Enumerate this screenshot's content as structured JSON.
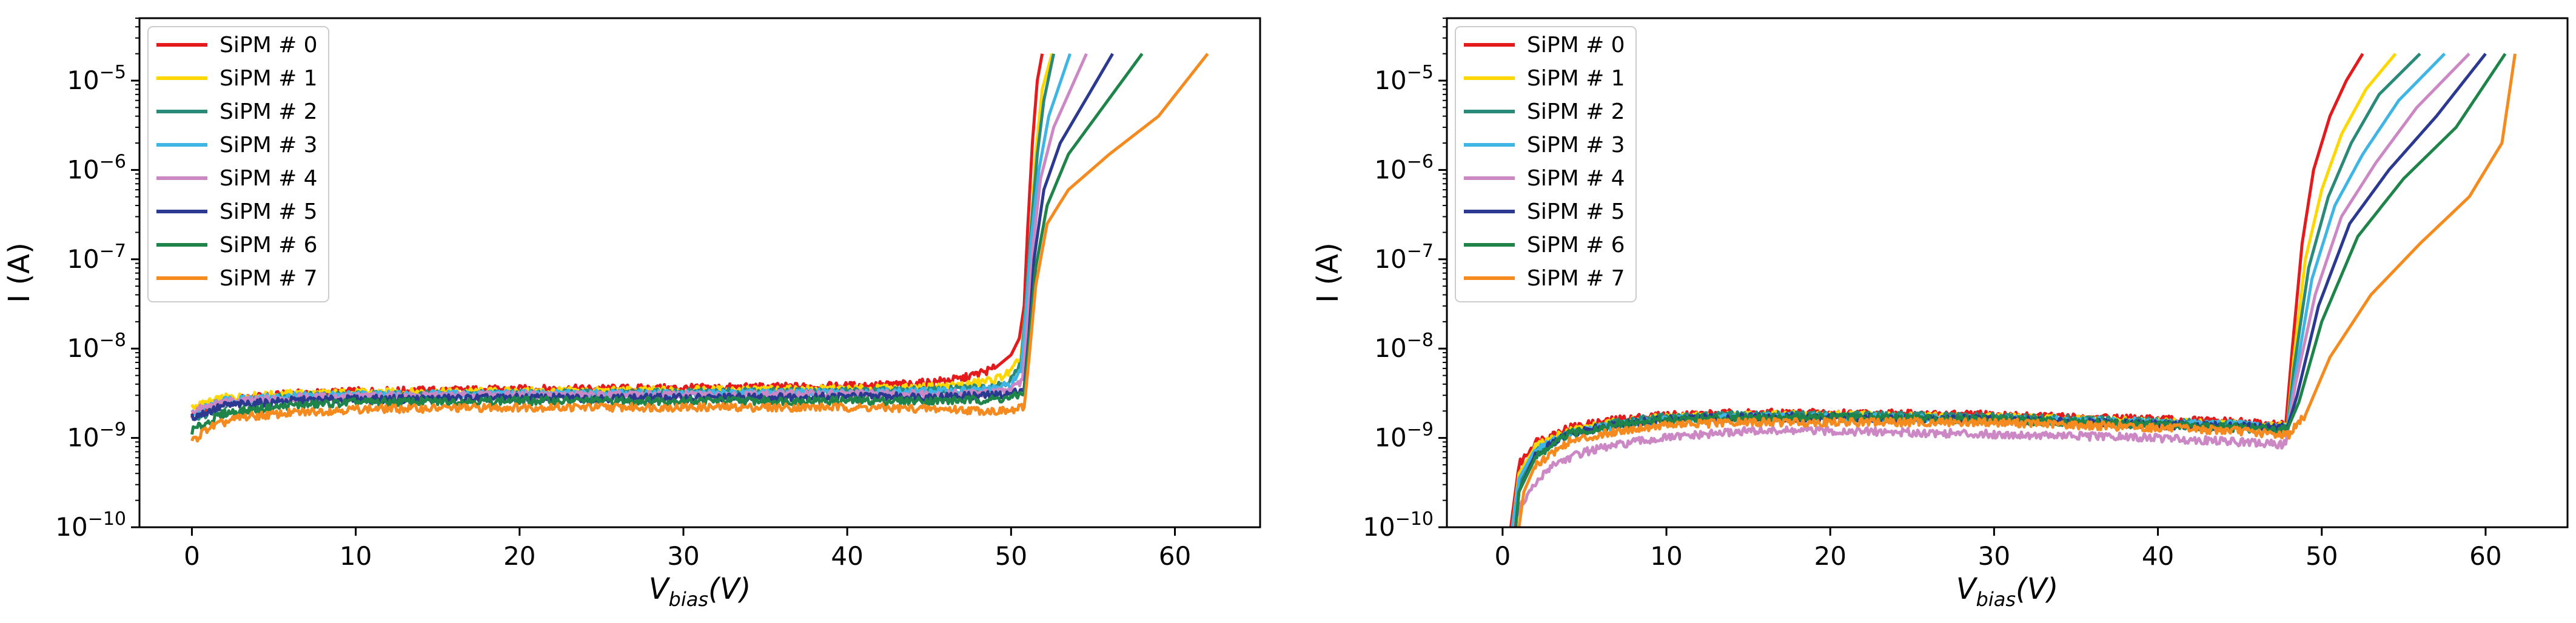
{
  "chart_data": [
    {
      "type": "line",
      "title": "",
      "xlabel": "V_bias(V)",
      "xlabel_main": "V",
      "xlabel_sub": "bias",
      "xlabel_suffix": "(V)",
      "ylabel": "I (A)",
      "yscale": "log",
      "xlim": [
        -3.2,
        65.2
      ],
      "ylim": [
        1e-10,
        5e-05
      ],
      "xticks": [
        0,
        10,
        20,
        30,
        40,
        50,
        60
      ],
      "xtick_labels": [
        "0",
        "10",
        "20",
        "30",
        "40",
        "50",
        "60"
      ],
      "yticks": [
        1e-10,
        1e-09,
        1e-08,
        1e-07,
        1e-06,
        1e-05
      ],
      "ytick_labels": [
        {
          "base": "10",
          "exp": "−10"
        },
        {
          "base": "10",
          "exp": "−9"
        },
        {
          "base": "10",
          "exp": "−8"
        },
        {
          "base": "10",
          "exp": "−7"
        },
        {
          "base": "10",
          "exp": "−6"
        },
        {
          "base": "10",
          "exp": "−5"
        }
      ],
      "legend_position": "upper-left",
      "series": [
        {
          "name": "SiPM # 0",
          "color": "#e41a1c",
          "x": [
            0,
            2,
            6,
            10,
            20,
            30,
            40,
            44,
            47,
            49,
            50,
            50.5,
            50.8,
            51.0,
            51.3,
            51.6,
            51.9
          ],
          "y": [
            1.8e-09,
            2.6e-09,
            3.1e-09,
            3.3e-09,
            3.5e-09,
            3.6e-09,
            3.8e-09,
            4e-09,
            4.6e-09,
            6e-09,
            8.5e-09,
            1.3e-08,
            3e-08,
            2e-07,
            2e-06,
            1e-05,
            2e-05
          ]
        },
        {
          "name": "SiPM # 1",
          "color": "#ffd700",
          "x": [
            0,
            2,
            6,
            10,
            20,
            30,
            40,
            44,
            47,
            49,
            50,
            50.6,
            50.9,
            51.2,
            51.5,
            51.9,
            52.5
          ],
          "y": [
            2.2e-09,
            2.8e-09,
            3.1e-09,
            3.2e-09,
            3.3e-09,
            3.4e-09,
            3.5e-09,
            3.6e-09,
            3.9e-09,
            4.5e-09,
            5.5e-09,
            8e-09,
            3e-08,
            2e-07,
            1.5e-06,
            8e-06,
            2e-05
          ]
        },
        {
          "name": "SiPM # 2",
          "color": "#2a8a7a",
          "x": [
            0,
            2,
            6,
            10,
            20,
            30,
            40,
            46,
            49,
            50,
            50.6,
            50.9,
            51.2,
            51.6,
            52.0,
            52.6
          ],
          "y": [
            1.5e-09,
            2.4e-09,
            2.9e-09,
            3e-09,
            3.1e-09,
            3.2e-09,
            3.3e-09,
            3.4e-09,
            3.8e-09,
            4.5e-09,
            6.5e-09,
            3e-08,
            2e-07,
            1.5e-06,
            6e-06,
            2e-05
          ]
        },
        {
          "name": "SiPM # 3",
          "color": "#3fb5e5",
          "x": [
            0,
            2,
            6,
            10,
            20,
            30,
            40,
            46,
            49,
            50,
            50.6,
            50.9,
            51.2,
            51.7,
            52.3,
            53.6
          ],
          "y": [
            1.9e-09,
            2.6e-09,
            2.9e-09,
            3e-09,
            3.1e-09,
            3.1e-09,
            3.2e-09,
            3.3e-09,
            3.5e-09,
            4e-09,
            5.5e-09,
            2.5e-08,
            1.5e-07,
            1e-06,
            4e-06,
            2e-05
          ]
        },
        {
          "name": "SiPM # 4",
          "color": "#cc88c4",
          "x": [
            0,
            2,
            6,
            10,
            20,
            30,
            40,
            46,
            49,
            50,
            50.7,
            51.0,
            51.3,
            51.8,
            52.6,
            54.6
          ],
          "y": [
            2e-09,
            2.5e-09,
            2.8e-09,
            2.9e-09,
            3e-09,
            3e-09,
            3.1e-09,
            3.1e-09,
            3.2e-09,
            3.4e-09,
            4.5e-09,
            2e-08,
            1.2e-07,
            8e-07,
            3e-06,
            2e-05
          ]
        },
        {
          "name": "SiPM # 5",
          "color": "#2b3990",
          "x": [
            0,
            2,
            6,
            10,
            20,
            30,
            40,
            46,
            49,
            50,
            50.8,
            51.1,
            51.4,
            52.0,
            53.0,
            56.2
          ],
          "y": [
            1.7e-09,
            2.3e-09,
            2.6e-09,
            2.7e-09,
            2.8e-09,
            2.8e-09,
            2.9e-09,
            2.9e-09,
            3e-09,
            3.1e-09,
            3.6e-09,
            1.5e-08,
            1e-07,
            6e-07,
            2e-06,
            2e-05
          ]
        },
        {
          "name": "SiPM # 6",
          "color": "#1e8449",
          "x": [
            0,
            2,
            6,
            10,
            20,
            30,
            40,
            46,
            49,
            50,
            50.8,
            51.1,
            51.5,
            52.2,
            53.5,
            58.0
          ],
          "y": [
            1.2e-09,
            1.9e-09,
            2.3e-09,
            2.5e-09,
            2.6e-09,
            2.6e-09,
            2.6e-09,
            2.6e-09,
            2.7e-09,
            2.8e-09,
            3.2e-09,
            1.2e-08,
            8e-08,
            4e-07,
            1.5e-06,
            2e-05
          ]
        },
        {
          "name": "SiPM # 7",
          "color": "#f58a1f",
          "x": [
            0,
            1,
            3,
            6,
            10,
            20,
            30,
            40,
            46,
            49,
            50,
            50.8,
            51.1,
            51.5,
            52.2,
            53.5,
            56,
            59,
            62
          ],
          "y": [
            9e-10,
            1.3e-09,
            1.7e-09,
            1.9e-09,
            2.1e-09,
            2.2e-09,
            2.2e-09,
            2.2e-09,
            2.1e-09,
            2e-09,
            2e-09,
            2.2e-09,
            8e-09,
            5e-08,
            2.5e-07,
            6e-07,
            1.5e-06,
            4e-06,
            2e-05
          ]
        }
      ]
    },
    {
      "type": "line",
      "title": "",
      "xlabel": "V_bias(V)",
      "xlabel_main": "V",
      "xlabel_sub": "bias",
      "xlabel_suffix": "(V)",
      "ylabel": "I (A)",
      "yscale": "log",
      "xlim": [
        -3.4,
        65.0
      ],
      "ylim": [
        1e-10,
        5e-05
      ],
      "xticks": [
        0,
        10,
        20,
        30,
        40,
        50,
        60
      ],
      "xtick_labels": [
        "0",
        "10",
        "20",
        "30",
        "40",
        "50",
        "60"
      ],
      "yticks": [
        1e-10,
        1e-09,
        1e-08,
        1e-07,
        1e-06,
        1e-05
      ],
      "ytick_labels": [
        {
          "base": "10",
          "exp": "−10"
        },
        {
          "base": "10",
          "exp": "−9"
        },
        {
          "base": "10",
          "exp": "−8"
        },
        {
          "base": "10",
          "exp": "−7"
        },
        {
          "base": "10",
          "exp": "−6"
        },
        {
          "base": "10",
          "exp": "−5"
        }
      ],
      "legend_position": "upper-left",
      "series": [
        {
          "name": "SiPM # 0",
          "color": "#e41a1c",
          "x": [
            0.5,
            1,
            2,
            4,
            7,
            10,
            15,
            20,
            30,
            40,
            45,
            47,
            47.8,
            48.2,
            48.8,
            49.5,
            50.5,
            51.5,
            52.5
          ],
          "y": [
            1e-10,
            5e-10,
            9e-10,
            1.3e-09,
            1.6e-09,
            1.8e-09,
            1.9e-09,
            1.9e-09,
            1.8e-09,
            1.6e-09,
            1.5e-09,
            1.4e-09,
            1.4e-09,
            1e-08,
            1.5e-07,
            1e-06,
            4e-06,
            1e-05,
            2e-05
          ]
        },
        {
          "name": "SiPM # 1",
          "color": "#ffd700",
          "x": [
            0.6,
            1,
            2,
            4,
            7,
            10,
            15,
            20,
            30,
            40,
            45,
            47,
            47.9,
            48.3,
            49.0,
            50.0,
            51.2,
            52.7,
            54.5
          ],
          "y": [
            1e-10,
            4e-10,
            8e-10,
            1.2e-09,
            1.5e-09,
            1.7e-09,
            1.8e-09,
            1.8e-09,
            1.7e-09,
            1.5e-09,
            1.4e-09,
            1.35e-09,
            1.35e-09,
            8e-09,
            1e-07,
            6e-07,
            2.5e-06,
            8e-06,
            2e-05
          ]
        },
        {
          "name": "SiPM # 2",
          "color": "#2a8a7a",
          "x": [
            0.7,
            1,
            2,
            4,
            7,
            10,
            15,
            20,
            30,
            40,
            45,
            47,
            47.9,
            48.3,
            49.2,
            50.4,
            51.8,
            53.5,
            56.0
          ],
          "y": [
            1e-10,
            3e-10,
            7e-10,
            1.1e-09,
            1.5e-09,
            1.7e-09,
            1.8e-09,
            1.8e-09,
            1.7e-09,
            1.5e-09,
            1.4e-09,
            1.3e-09,
            1.3e-09,
            6e-09,
            8e-08,
            5e-07,
            2e-06,
            7e-06,
            2e-05
          ]
        },
        {
          "name": "SiPM # 3",
          "color": "#3fb5e5",
          "x": [
            0.6,
            1,
            2,
            4,
            7,
            10,
            15,
            20,
            30,
            40,
            45,
            47,
            47.9,
            48.4,
            49.4,
            50.8,
            52.5,
            54.7,
            57.5
          ],
          "y": [
            1e-10,
            3.5e-10,
            7.5e-10,
            1.1e-09,
            1.4e-09,
            1.6e-09,
            1.7e-09,
            1.7e-09,
            1.6e-09,
            1.5e-09,
            1.4e-09,
            1.3e-09,
            1.3e-09,
            5e-09,
            6e-08,
            4e-07,
            1.5e-06,
            6e-06,
            2e-05
          ]
        },
        {
          "name": "SiPM # 4",
          "color": "#cc88c4",
          "x": [
            0.7,
            1,
            2,
            3,
            5,
            8,
            10,
            15,
            20,
            30,
            40,
            45,
            47,
            47.8,
            48.4,
            49.6,
            51.2,
            53.3,
            55.8,
            59.0
          ],
          "y": [
            1e-10,
            1.6e-10,
            3e-10,
            5e-10,
            7e-10,
            9e-10,
            1e-09,
            1.2e-09,
            1.2e-09,
            1.1e-09,
            1e-09,
            9e-10,
            8.5e-10,
            8.5e-10,
            4e-09,
            4e-08,
            3e-07,
            1.2e-06,
            5e-06,
            2e-05
          ]
        },
        {
          "name": "SiPM # 5",
          "color": "#2b3990",
          "x": [
            0.8,
            1,
            2,
            4,
            7,
            10,
            15,
            20,
            30,
            40,
            45,
            47,
            47.9,
            48.5,
            49.8,
            51.7,
            54.1,
            57.0,
            60.0
          ],
          "y": [
            1e-10,
            2.5e-10,
            6.5e-10,
            1.1e-09,
            1.4e-09,
            1.6e-09,
            1.7e-09,
            1.7e-09,
            1.6e-09,
            1.4e-09,
            1.35e-09,
            1.3e-09,
            1.3e-09,
            3e-09,
            3e-08,
            2.5e-07,
            1e-06,
            4e-06,
            2e-05
          ]
        },
        {
          "name": "SiPM # 6",
          "color": "#1e8449",
          "x": [
            0.8,
            1,
            2,
            4,
            7,
            10,
            15,
            20,
            30,
            40,
            45,
            47,
            47.9,
            48.6,
            50.0,
            52.2,
            55.0,
            58.2,
            61.2
          ],
          "y": [
            1e-10,
            2.5e-10,
            6e-10,
            1.1e-09,
            1.4e-09,
            1.6e-09,
            1.7e-09,
            1.7e-09,
            1.6e-09,
            1.4e-09,
            1.3e-09,
            1.25e-09,
            1.25e-09,
            2.5e-09,
            2e-08,
            1.8e-07,
            8e-07,
            3e-06,
            2e-05
          ]
        },
        {
          "name": "SiPM # 7",
          "color": "#f58a1f",
          "x": [
            1.0,
            1.3,
            2,
            4,
            7,
            10,
            15,
            20,
            30,
            40,
            45,
            47,
            48,
            49.0,
            50.5,
            53.0,
            56.0,
            59.0,
            61.0,
            61.8
          ],
          "y": [
            1e-10,
            2.5e-10,
            5e-10,
            9e-10,
            1.2e-09,
            1.4e-09,
            1.5e-09,
            1.5e-09,
            1.5e-09,
            1.3e-09,
            1.2e-09,
            1.1e-09,
            1.1e-09,
            1.8e-09,
            8e-09,
            4e-08,
            1.5e-07,
            5e-07,
            2e-06,
            2e-05
          ]
        }
      ]
    }
  ]
}
